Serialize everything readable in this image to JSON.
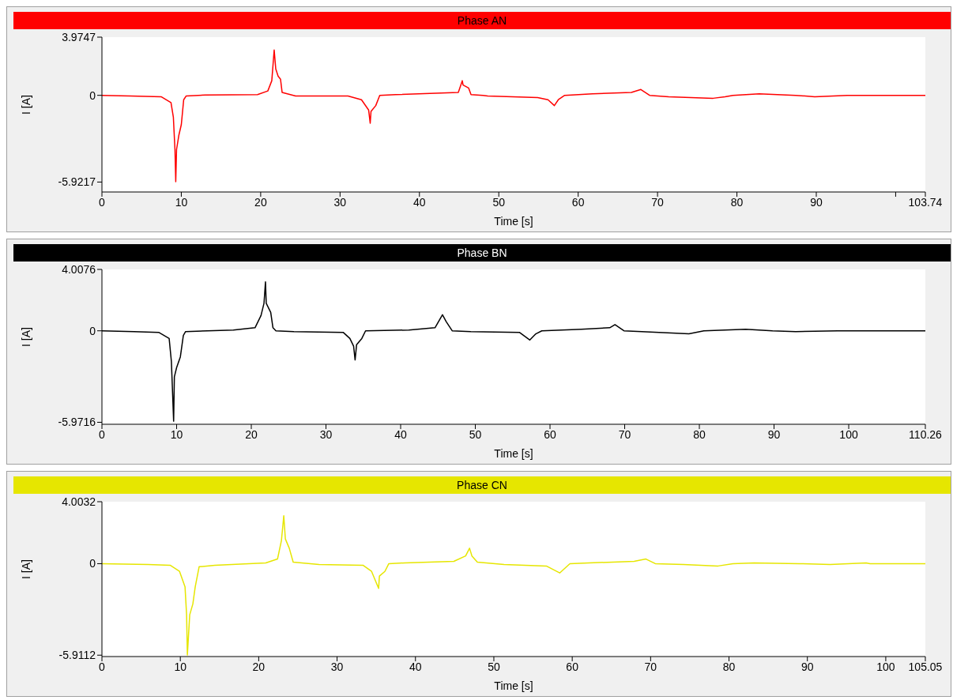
{
  "chart_data": [
    {
      "type": "line",
      "title": "Phase AN",
      "xlabel": "Time [s]",
      "ylabel": "I [A]",
      "xlim": [
        0,
        103.74
      ],
      "xticks": [
        0,
        10,
        20,
        30,
        40,
        50,
        60,
        70,
        80,
        90,
        {
          "value": 100,
          "label": null
        },
        103.74
      ],
      "ylim": [
        -6.6,
        3.9747
      ],
      "yticks": [
        -5.9217,
        0,
        3.9747
      ],
      "grid": false,
      "x": [
        0,
        3.6,
        7.5,
        8.7,
        9.0,
        9.2,
        9.3,
        9.4,
        9.7,
        10.0,
        10.3,
        10.6,
        13,
        19.6,
        20.9,
        21.4,
        21.6,
        21.7,
        21.9,
        22.2,
        22.5,
        22.7,
        24.4,
        31,
        32.7,
        33.6,
        33.8,
        33.9,
        34.5,
        35.0,
        37,
        44.9,
        45.4,
        45.5,
        46.2,
        46.5,
        48,
        48.6,
        54.9,
        56.2,
        57.0,
        57.5,
        58.3,
        61.8,
        66.7,
        67.9,
        69.0,
        71.4,
        77,
        78.5,
        79.5,
        82.8,
        87.4,
        89.8,
        93.9,
        103.74
      ],
      "series": [
        {
          "color": "#ff0000",
          "values": [
            0,
            -0.05,
            -0.1,
            -0.5,
            -1.5,
            -3.7,
            -5.9,
            -3.7,
            -2.7,
            -2.0,
            -0.3,
            -0.05,
            0.02,
            0.05,
            0.3,
            1.0,
            2.4,
            3.1,
            1.8,
            1.3,
            1.1,
            0.2,
            -0.05,
            -0.05,
            -0.3,
            -1.0,
            -1.9,
            -1.1,
            -0.7,
            0,
            0.05,
            0.2,
            1.0,
            0.7,
            0.5,
            0.05,
            0,
            -0.05,
            -0.15,
            -0.3,
            -0.7,
            -0.3,
            0,
            0.1,
            0.2,
            0.4,
            0,
            -0.1,
            -0.2,
            -0.1,
            0,
            0.1,
            0,
            -0.1,
            0,
            0
          ]
        }
      ]
    },
    {
      "type": "line",
      "title": "Phase BN",
      "xlabel": "Time [s]",
      "ylabel": "I [A]",
      "xlim": [
        0,
        110.26
      ],
      "xticks": [
        0,
        10,
        20,
        30,
        40,
        50,
        60,
        70,
        80,
        90,
        100,
        110.26
      ],
      "ylim": [
        -6.1,
        4.0076
      ],
      "yticks": [
        -5.9716,
        0,
        4.0076
      ],
      "grid": false,
      "x": [
        0,
        4.3,
        7.6,
        9.0,
        9.3,
        9.6,
        9.7,
        10.0,
        10.5,
        10.9,
        11.2,
        17.6,
        20.5,
        21.3,
        21.7,
        21.9,
        22.0,
        22.6,
        22.9,
        23.3,
        25.7,
        32.3,
        33.2,
        33.7,
        33.9,
        34.1,
        34.8,
        35.3,
        41.1,
        44.6,
        45.6,
        46.1,
        46.9,
        49.4,
        55.9,
        57.3,
        58.1,
        58.9,
        64.2,
        68.0,
        68.7,
        69.9,
        72.3,
        78.6,
        80.6,
        86.2,
        89.8,
        92.9,
        98.5,
        110.26
      ],
      "series": [
        {
          "color": "#000000",
          "values": [
            0,
            -0.05,
            -0.1,
            -0.5,
            -2.0,
            -5.9,
            -3.0,
            -2.4,
            -1.7,
            -0.3,
            -0.05,
            0.05,
            0.2,
            1.0,
            1.8,
            3.2,
            1.8,
            1.2,
            0.2,
            0,
            -0.05,
            -0.1,
            -0.5,
            -1.0,
            -1.9,
            -0.9,
            -0.5,
            0,
            0.05,
            0.2,
            1.05,
            0.6,
            0,
            -0.05,
            -0.1,
            -0.6,
            -0.2,
            0,
            0.1,
            0.2,
            0.4,
            0,
            -0.05,
            -0.2,
            0,
            0.1,
            0,
            -0.05,
            0,
            0
          ]
        }
      ]
    },
    {
      "type": "line",
      "title": "Phase CN",
      "xlabel": "Time [s]",
      "ylabel": "I [A]",
      "xlim": [
        0,
        105.05
      ],
      "xticks": [
        0,
        10,
        20,
        30,
        40,
        50,
        60,
        70,
        80,
        90,
        100,
        105.05
      ],
      "ylim": [
        -6.0,
        4.0032
      ],
      "yticks": [
        -5.9112,
        0,
        4.0032
      ],
      "grid": false,
      "x": [
        0,
        5.9,
        8.7,
        9.9,
        10.6,
        10.8,
        10.9,
        11.2,
        11.6,
        11.9,
        12.4,
        14.4,
        20.9,
        22.4,
        22.9,
        23.2,
        23.4,
        23.9,
        24.4,
        27.7,
        33.3,
        34.4,
        35.3,
        35.4,
        36.1,
        36.6,
        38.6,
        44.9,
        46.4,
        46.9,
        47.2,
        47.9,
        51.3,
        56.7,
        58.4,
        59.7,
        62.1,
        67.9,
        69.4,
        70.6,
        74.2,
        78.6,
        80.5,
        83.2,
        89,
        92.9,
        97.5,
        98,
        105.05
      ],
      "series": [
        {
          "color": "#e6e600",
          "values": [
            0,
            -0.05,
            -0.1,
            -0.5,
            -1.5,
            -3.3,
            -5.9,
            -3.3,
            -2.6,
            -1.5,
            -0.2,
            -0.1,
            0.05,
            0.3,
            1.5,
            3.1,
            1.6,
            1.0,
            0.1,
            -0.05,
            -0.1,
            -0.5,
            -1.6,
            -0.8,
            -0.5,
            0,
            0.05,
            0.15,
            0.5,
            1.0,
            0.5,
            0.1,
            -0.05,
            -0.15,
            -0.6,
            0,
            0.05,
            0.15,
            0.3,
            0,
            -0.05,
            -0.15,
            0,
            0.05,
            0,
            -0.05,
            0.05,
            0,
            0
          ]
        }
      ]
    }
  ]
}
